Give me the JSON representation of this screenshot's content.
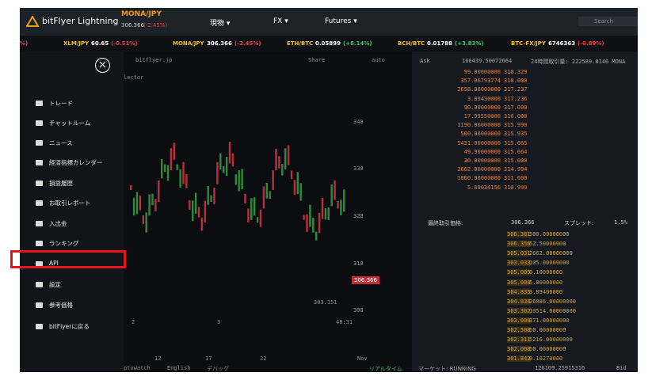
{
  "header": {
    "logo": "bitFlyer Lightning",
    "pair": "MONA/JPY",
    "price": "306.366",
    "change": "(-2.45%)",
    "nav": [
      "現物",
      "FX",
      "Futures"
    ],
    "search": "Search"
  },
  "ticker": {
    "fragment": "%)",
    "items": [
      {
        "name": "XLM/JPY",
        "price": "60.65",
        "change": "(-0.51%)"
      },
      {
        "name": "MONA/JPY",
        "price": "306.366",
        "change": "(-2.45%)"
      },
      {
        "name": "ETH/BTC",
        "price": "0.05899",
        "change": "(+8.14%)"
      },
      {
        "name": "BCH/BTC",
        "price": "0.01788",
        "change": "(+3.83%)"
      },
      {
        "name": "BTC-FX/JPY",
        "price": "6746363",
        "change": "(-0.89%)"
      }
    ]
  },
  "sidebar": {
    "close": "×",
    "items": [
      "トレード",
      "チャットルーム",
      "ニュース",
      "経済指標カレンダー",
      "損益履歴",
      "お取引レポート",
      "入出金",
      "ランキング",
      "API",
      "設定",
      "参考価格",
      "bitFlyerに戻る"
    ]
  },
  "chart_panel": {
    "site": "bitflyer.jp",
    "share": "Share",
    "scale": "auto",
    "selector": "lector",
    "price_labels": [
      "340",
      "330",
      "320",
      "310",
      "300"
    ],
    "last_tag": "306.366",
    "low_tag": "303.151",
    "time_labels": [
      "2",
      "3",
      "48:31"
    ],
    "date_labels": [
      "12",
      "17",
      "22",
      "Nov"
    ],
    "footer": [
      "ptowatch",
      "English",
      "デバッグ",
      "リアルタイム"
    ]
  },
  "order_book": {
    "ask_label": "Ask",
    "ask_total": "166439.50072664",
    "volume": "24時間取引量: 222589.0146 MONA",
    "asks": [
      [
        "99.00000000",
        "318.329"
      ],
      [
        "357.06793774",
        "318.000"
      ],
      [
        "2658.00000000",
        "317.237"
      ],
      [
        "3.89430000",
        "317.236"
      ],
      [
        "90.00000000",
        "317.000"
      ],
      [
        "17.99550000",
        "316.000"
      ],
      [
        "1190.00000000",
        "315.990"
      ],
      [
        "500.00000000",
        "315.935"
      ],
      [
        "5431.00000000",
        "315.665"
      ],
      [
        "49.90000000",
        "315.664"
      ],
      [
        "20.00000000",
        "315.000"
      ],
      [
        "2662.00000000",
        "314.994"
      ],
      [
        "1000.00000000",
        "311.000"
      ],
      [
        "5.89034156",
        "310.999"
      ]
    ],
    "last_label": "最終取引価格:",
    "last_price": "306.366",
    "spread_label": "スプレッド:",
    "spread": "1.5%",
    "bids": [
      [
        "306.381",
        "500.00000000"
      ],
      [
        "306.356",
        "52.50000000"
      ],
      [
        "305.031",
        "2662.00000000"
      ],
      [
        "303.033",
        "105.00000000"
      ],
      [
        "305.005",
        "0.10000000"
      ],
      [
        "305.000",
        "5.00000000"
      ],
      [
        "304.835",
        "3.89400000"
      ],
      [
        "304.834",
        "26086.00000000"
      ],
      [
        "303.302",
        "10514.00000000"
      ],
      [
        "303.000",
        "371.00000000"
      ],
      [
        "302.500",
        "50.00000000"
      ],
      [
        "302.311",
        "5216.00000000"
      ],
      [
        "302.000",
        "50.00000000"
      ],
      [
        "301.842",
        "0.10270000"
      ]
    ],
    "market": "マーケット: RUNNING",
    "bid_total": "126109.25915316",
    "bid_label": "Bid"
  }
}
